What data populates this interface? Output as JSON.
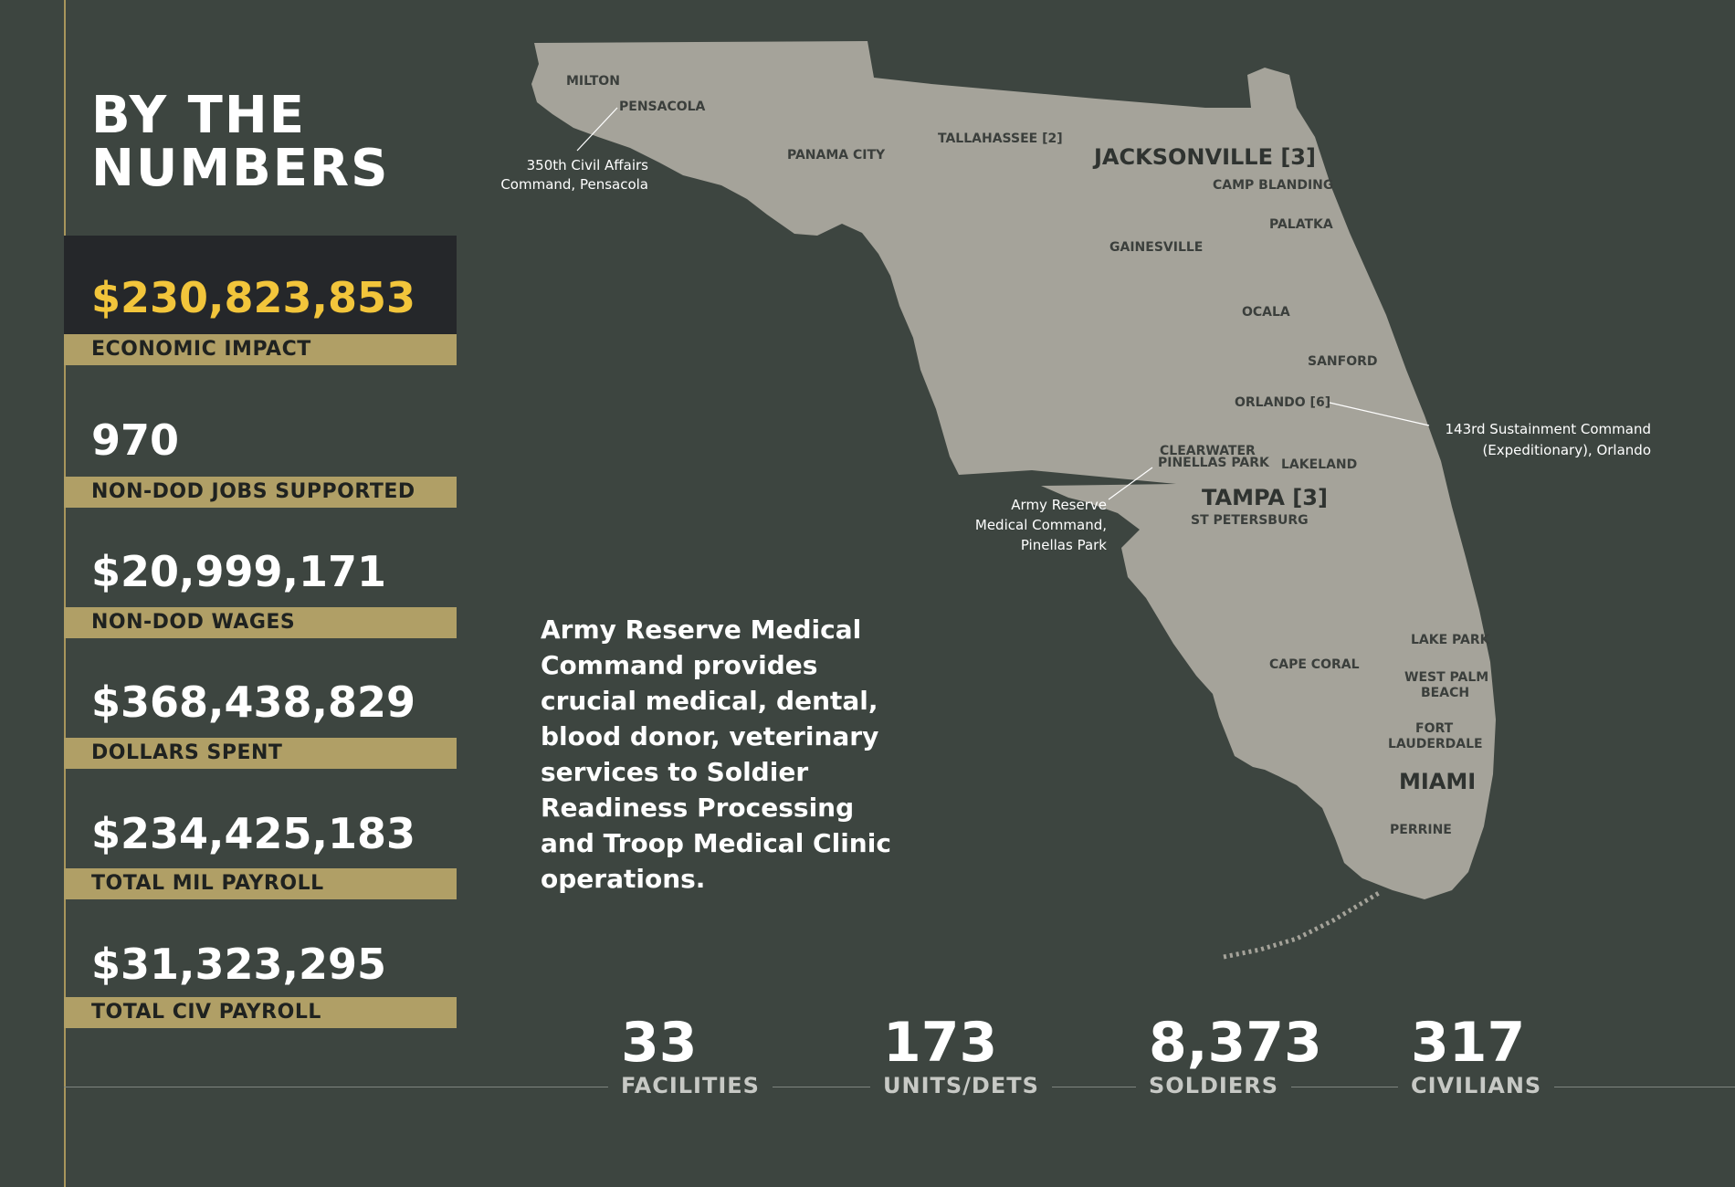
{
  "title": {
    "line1": "BY THE",
    "line2": "NUMBERS"
  },
  "stats": [
    {
      "value": "$230,823,853",
      "label": "ECONOMIC IMPACT"
    },
    {
      "value": "970",
      "label": "NON-DOD JOBS SUPPORTED"
    },
    {
      "value": "$20,999,171",
      "label": "NON-DOD WAGES"
    },
    {
      "value": "$368,438,829",
      "label": "DOLLARS SPENT"
    },
    {
      "value": "$234,425,183",
      "label": "TOTAL MIL PAYROLL"
    },
    {
      "value": "$31,323,295",
      "label": "TOTAL CIV PAYROLL"
    }
  ],
  "description": "Army Reserve Medical Command provides crucial medical, dental, blood donor, veterinary services to Soldier Readiness Processing and Troop Medical Clinic operations.",
  "map": {
    "cities": {
      "milton": "MILTON",
      "pensacola": "PENSACOLA",
      "panama_city": "PANAMA CITY",
      "tallahassee": "TALLAHASSEE [2]",
      "jacksonville": "JACKSONVILLE [3]",
      "camp_blanding": "CAMP BLANDING",
      "palatka": "PALATKA",
      "gainesville": "GAINESVILLE",
      "ocala": "OCALA",
      "sanford": "SANFORD",
      "orlando": "ORLANDO [6]",
      "clearwater": "CLEARWATER",
      "pinellas_park": "PINELLAS PARK",
      "lakeland": "LAKELAND",
      "tampa": "TAMPA [3]",
      "st_petersburg": "ST PETERSBURG",
      "lake_park": "LAKE PARK",
      "cape_coral": "CAPE CORAL",
      "west_palm_1": "WEST PALM",
      "west_palm_2": "BEACH",
      "fort_lauderdale_1": "FORT",
      "fort_lauderdale_2": "LAUDERDALE",
      "miami": "MIAMI",
      "perrine": "PERRINE"
    },
    "callouts": {
      "civil_affairs_1": "350th Civil Affairs",
      "civil_affairs_2": "Command, Pensacola",
      "sustainment_1": "143rd Sustainment Command",
      "sustainment_2": "(Expeditionary), Orlando",
      "medical_1": "Army Reserve",
      "medical_2": "Medical Command,",
      "medical_3": "Pinellas Park"
    }
  },
  "metrics": [
    {
      "value": "33",
      "label": "FACILITIES"
    },
    {
      "value": "173",
      "label": "UNITS/DETS"
    },
    {
      "value": "8,373",
      "label": "SOLDIERS"
    },
    {
      "value": "317",
      "label": "CIVILIANS"
    }
  ],
  "colors": {
    "background": "#3d4540",
    "gold": "#b09f66",
    "highlight": "#f2c53b",
    "map": "#a5a39a"
  }
}
